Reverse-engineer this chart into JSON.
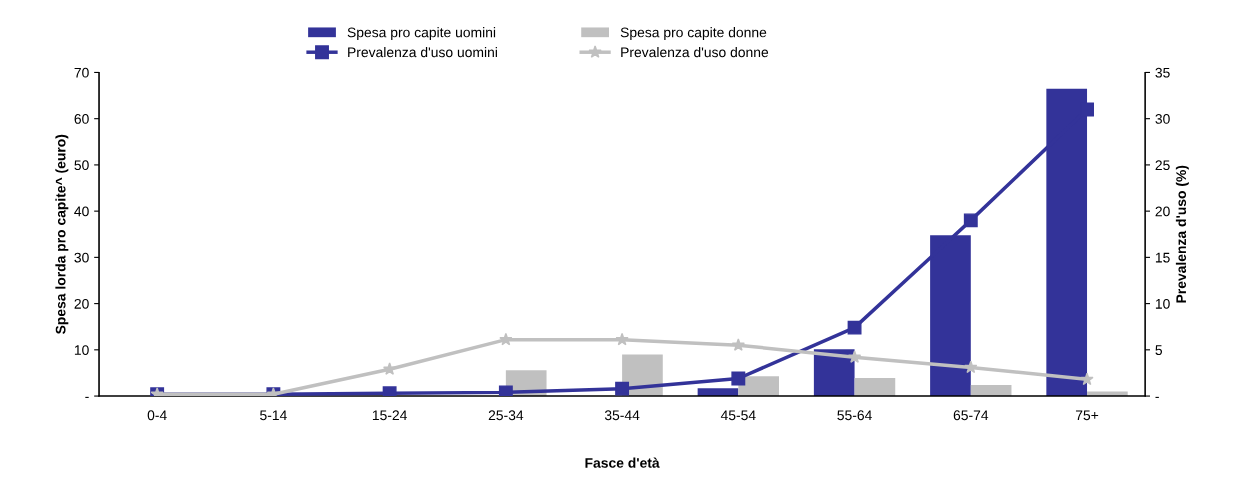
{
  "chart_data": {
    "type": "bar",
    "xlabel": "Fasce d'età",
    "ylabel": "Spesa lorda pro capite^ (euro)",
    "y2label": "Prevalenza d'uso (%)",
    "categories": [
      "0-4",
      "5-14",
      "15-24",
      "25-34",
      "35-44",
      "45-54",
      "55-64",
      "65-74",
      "75+"
    ],
    "series": [
      {
        "name": "Spesa pro capite uomini",
        "color": "#333399",
        "values": [
          0,
          0,
          null,
          null,
          null,
          1.7,
          10.1,
          34.8,
          66.5
        ]
      },
      {
        "name": "Spesa pro capite donne",
        "color": "#c0c0c0",
        "values": [
          0,
          0,
          null,
          5.6,
          9.0,
          4.3,
          3.9,
          2.4,
          1.0
        ]
      },
      {
        "name": "Prevalenza d'uso uomini",
        "type": "line",
        "axis": "y2",
        "marker": "square",
        "color": "#333399",
        "values": [
          0.2,
          0.2,
          0.3,
          0.4,
          0.8,
          1.9,
          7.4,
          19.0,
          31.0
        ]
      },
      {
        "name": "Prevalenza d'uso donne",
        "type": "line",
        "axis": "y2",
        "marker": "star",
        "color": "#c0c0c0",
        "values": [
          0.2,
          0.2,
          2.9,
          6.1,
          6.1,
          5.5,
          4.2,
          3.1,
          1.8
        ]
      }
    ],
    "ylim": [
      0,
      70
    ],
    "yticks": [
      {
        "value": 0,
        "label": "-"
      },
      10,
      20,
      30,
      40,
      50,
      60,
      70
    ],
    "y2lim": [
      0,
      35
    ],
    "y2ticks": [
      {
        "value": 0,
        "label": "-"
      },
      5,
      10,
      15,
      20,
      25,
      30,
      35
    ],
    "grid": false,
    "legend": "top"
  }
}
